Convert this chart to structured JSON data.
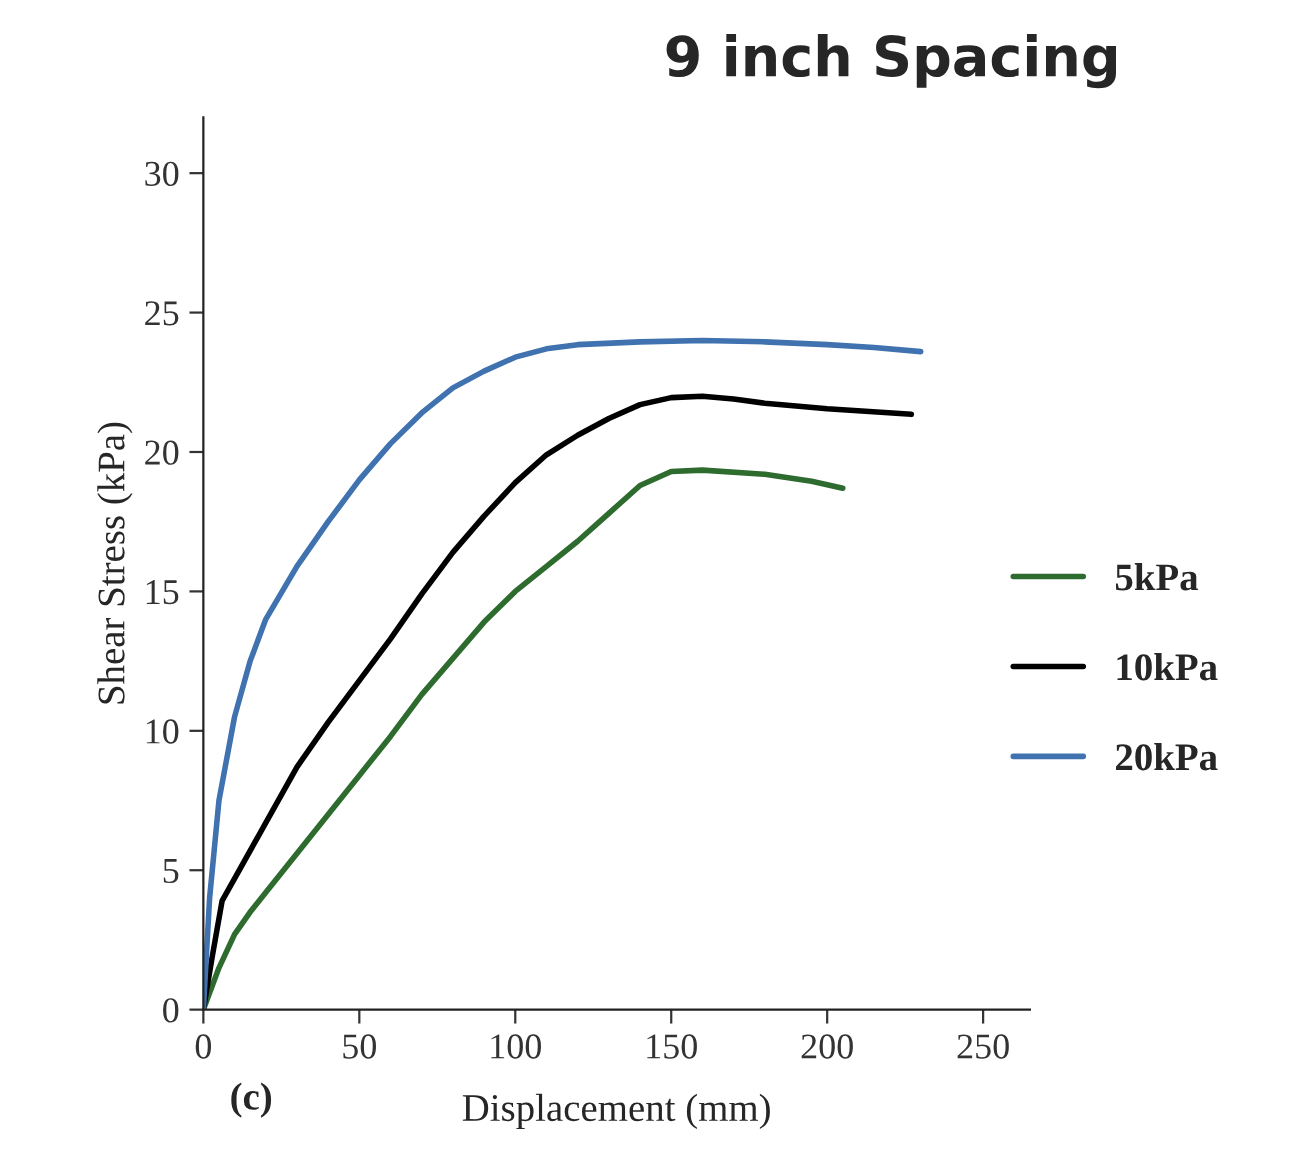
{
  "chart_data": {
    "type": "line",
    "title": "9 inch Spacing",
    "xlabel": "Displacement (mm)",
    "ylabel": "Shear Stress (kPa)",
    "annotations": [
      "(c)"
    ],
    "xlim": [
      0,
      265
    ],
    "ylim": [
      0,
      32
    ],
    "xticks": [
      0,
      50,
      100,
      150,
      200,
      250
    ],
    "yticks": [
      0,
      5,
      10,
      15,
      20,
      25,
      30
    ],
    "grid": false,
    "legend": "right",
    "marker": "none",
    "line_style": "solid",
    "series": [
      {
        "name": "5kPa",
        "color": "#2e6b2e",
        "x": [
          0,
          5,
          10,
          15,
          20,
          30,
          40,
          50,
          60,
          70,
          80,
          90,
          100,
          110,
          120,
          130,
          140,
          150,
          160,
          180,
          195,
          205
        ],
        "values": [
          0,
          1.5,
          2.7,
          3.5,
          4.2,
          5.6,
          7.0,
          8.4,
          9.8,
          11.3,
          12.6,
          13.9,
          15.0,
          15.9,
          16.8,
          17.8,
          18.8,
          19.3,
          19.35,
          19.2,
          18.95,
          18.7
        ]
      },
      {
        "name": "10kPa",
        "color": "#000000",
        "x": [
          0,
          3,
          6,
          10,
          20,
          30,
          40,
          50,
          60,
          70,
          80,
          90,
          100,
          110,
          120,
          130,
          140,
          150,
          160,
          170,
          180,
          200,
          227
        ],
        "values": [
          0,
          2,
          3.9,
          4.7,
          6.7,
          8.7,
          10.3,
          11.8,
          13.3,
          14.9,
          16.4,
          17.7,
          18.9,
          19.9,
          20.6,
          21.2,
          21.7,
          21.95,
          22.0,
          21.9,
          21.75,
          21.55,
          21.35
        ]
      },
      {
        "name": "20kPa",
        "color": "#3f72af",
        "x": [
          0,
          2,
          5,
          10,
          15,
          20,
          30,
          40,
          50,
          60,
          70,
          80,
          90,
          100,
          110,
          120,
          140,
          160,
          180,
          200,
          215,
          230
        ],
        "values": [
          0,
          4,
          7.5,
          10.5,
          12.5,
          14,
          15.9,
          17.5,
          19.0,
          20.3,
          21.4,
          22.3,
          22.9,
          23.4,
          23.7,
          23.85,
          23.95,
          24.0,
          23.95,
          23.85,
          23.75,
          23.6
        ]
      }
    ]
  }
}
